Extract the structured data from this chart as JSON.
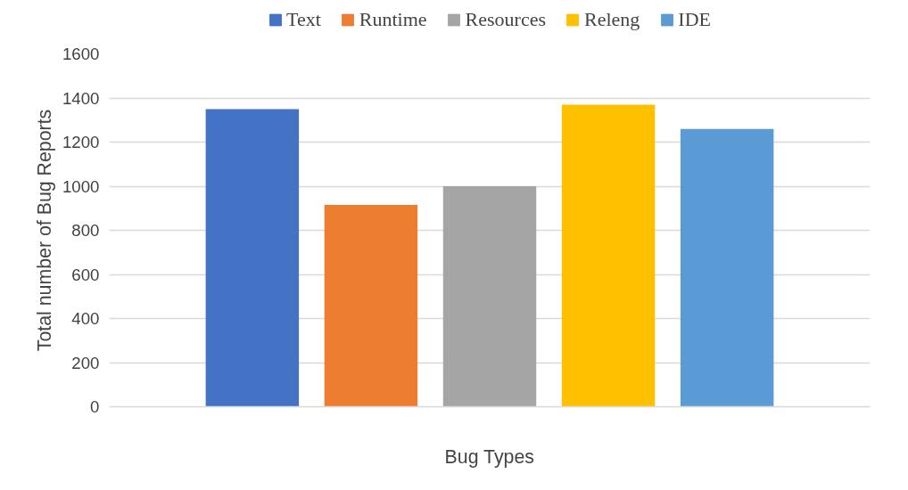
{
  "chart_data": {
    "type": "bar",
    "xlabel": "Bug Types",
    "ylabel": "Total number of Bug Reports",
    "categories": [
      null
    ],
    "series": [
      {
        "name": "Text",
        "color": "#4472c4",
        "values": [
          1350
        ]
      },
      {
        "name": "Runtime",
        "color": "#ed7d31",
        "values": [
          915
        ]
      },
      {
        "name": "Resources",
        "color": "#a5a5a5",
        "values": [
          1000
        ]
      },
      {
        "name": "Releng",
        "color": "#ffc000",
        "values": [
          1370
        ]
      },
      {
        "name": "IDE",
        "color": "#5b9bd5",
        "values": [
          1260
        ]
      }
    ],
    "ylim": [
      0,
      1600
    ],
    "yticks": [
      0,
      200,
      400,
      600,
      800,
      1000,
      1200,
      1400,
      1600
    ],
    "grid": "y",
    "legend": "top"
  }
}
